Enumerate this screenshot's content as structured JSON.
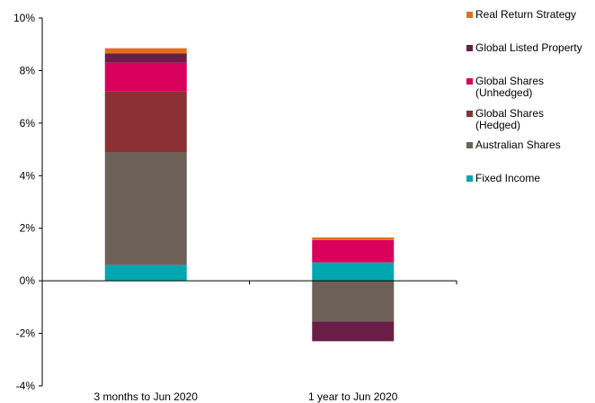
{
  "chart_data": {
    "type": "bar",
    "stacked": true,
    "title": "",
    "xlabel": "",
    "ylabel": "",
    "categories": [
      "3 months to Jun 2020",
      "1 year to Jun 2020"
    ],
    "ylim": [
      -4,
      10
    ],
    "yticks": [
      -4,
      -2,
      0,
      2,
      4,
      6,
      8,
      10
    ],
    "ytick_labels": [
      "-4%",
      "-2%",
      "0%",
      "2%",
      "4%",
      "6%",
      "8%",
      "10%"
    ],
    "grid": false,
    "legend_position": "right",
    "series": [
      {
        "name": "Fixed Income",
        "color": "#00A6B0",
        "values": [
          0.6,
          0.7
        ]
      },
      {
        "name": "Australian Shares",
        "color": "#6D6157",
        "values": [
          4.3,
          -1.55
        ]
      },
      {
        "name": "Global Shares\n(Hedged)",
        "color": "#8B3034",
        "values": [
          2.3,
          0.0
        ]
      },
      {
        "name": "Global Shares\n(Unhedged)",
        "color": "#D8005B",
        "values": [
          1.1,
          0.85
        ]
      },
      {
        "name": "Global Listed Property",
        "color": "#6A1E47",
        "values": [
          0.35,
          -0.75
        ]
      },
      {
        "name": "Real Return Strategy",
        "color": "#E1701E",
        "values": [
          0.2,
          0.1
        ]
      }
    ],
    "legend_order": [
      "Real Return Strategy",
      "Global Listed Property",
      "Global Shares\n(Unhedged)",
      "Global Shares\n(Hedged)",
      "Australian Shares",
      "Fixed Income"
    ]
  }
}
